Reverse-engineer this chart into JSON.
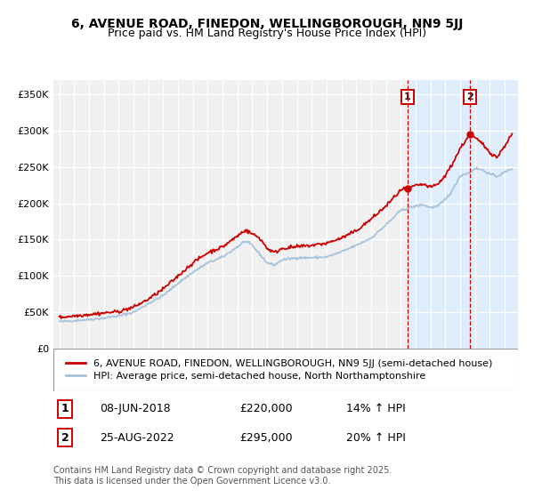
{
  "title_line1": "6, AVENUE ROAD, FINEDON, WELLINGBOROUGH, NN9 5JJ",
  "title_line2": "Price paid vs. HM Land Registry's House Price Index (HPI)",
  "ylim": [
    0,
    370000
  ],
  "yticks": [
    0,
    50000,
    100000,
    150000,
    200000,
    250000,
    300000,
    350000
  ],
  "ytick_labels": [
    "£0",
    "£50K",
    "£100K",
    "£150K",
    "£200K",
    "£250K",
    "£300K",
    "£350K"
  ],
  "background_color": "#ffffff",
  "plot_bg_color": "#f0f0f0",
  "grid_color": "#ffffff",
  "hpi_line_color": "#a8c4dc",
  "price_line_color": "#cc0000",
  "marker_color": "#cc0000",
  "vline_color": "#cc0000",
  "shade_color": "#ddeeff",
  "sale1_date": 2018.44,
  "sale1_price": 220000,
  "sale2_date": 2022.65,
  "sale2_price": 295000,
  "legend_price_label": "6, AVENUE ROAD, FINEDON, WELLINGBOROUGH, NN9 5JJ (semi-detached house)",
  "legend_hpi_label": "HPI: Average price, semi-detached house, North Northamptonshire",
  "sale1_text": "08-JUN-2018",
  "sale1_amount": "£220,000",
  "sale1_hpi": "14% ↑ HPI",
  "sale2_text": "25-AUG-2022",
  "sale2_amount": "£295,000",
  "sale2_hpi": "20% ↑ HPI",
  "footer": "Contains HM Land Registry data © Crown copyright and database right 2025.\nThis data is licensed under the Open Government Licence v3.0."
}
